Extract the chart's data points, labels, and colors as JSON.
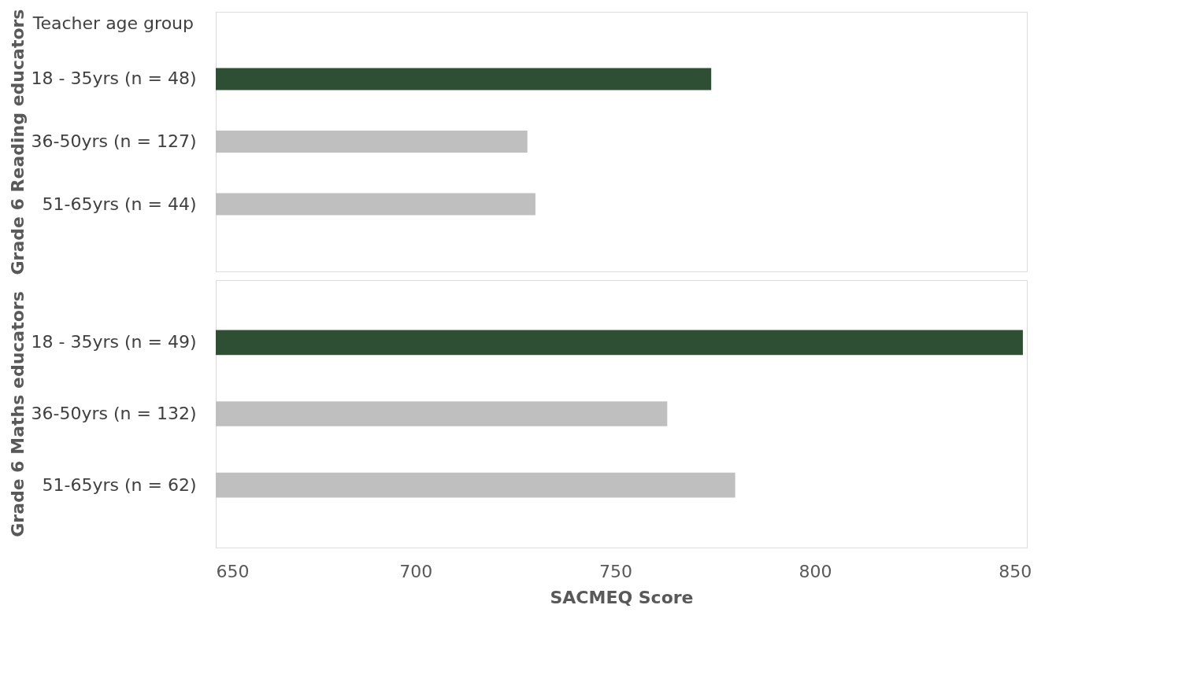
{
  "chart_data": [
    {
      "type": "bar",
      "orientation": "horizontal",
      "ylabel": "Grade 6 Reading educators",
      "annotations": [
        "Teacher age group"
      ],
      "categories": [
        "18 - 35yrs (n = 48)",
        "36-50yrs (n = 127)",
        "51-65yrs (n = 44)"
      ],
      "values": [
        774,
        728,
        730
      ],
      "colors": [
        "#2e4f34",
        "#bfbfbf",
        "#bfbfbf"
      ],
      "xlim": [
        650,
        853
      ],
      "xticks": [
        650,
        700,
        750,
        800,
        850
      ],
      "tick_labels": "y",
      "grid": false,
      "legend": false
    },
    {
      "type": "bar",
      "orientation": "horizontal",
      "ylabel": "Grade 6 Maths educators",
      "xlabel": "SACMEQ Score",
      "categories": [
        "18 - 35yrs (n = 49)",
        "36-50yrs (n = 132)",
        "51-65yrs (n = 62)"
      ],
      "values": [
        852,
        763,
        780
      ],
      "colors": [
        "#2e4f34",
        "#bfbfbf",
        "#bfbfbf"
      ],
      "xlim": [
        650,
        853
      ],
      "xticks": [
        650,
        700,
        750,
        800,
        850
      ],
      "grid": false,
      "legend": false
    }
  ]
}
